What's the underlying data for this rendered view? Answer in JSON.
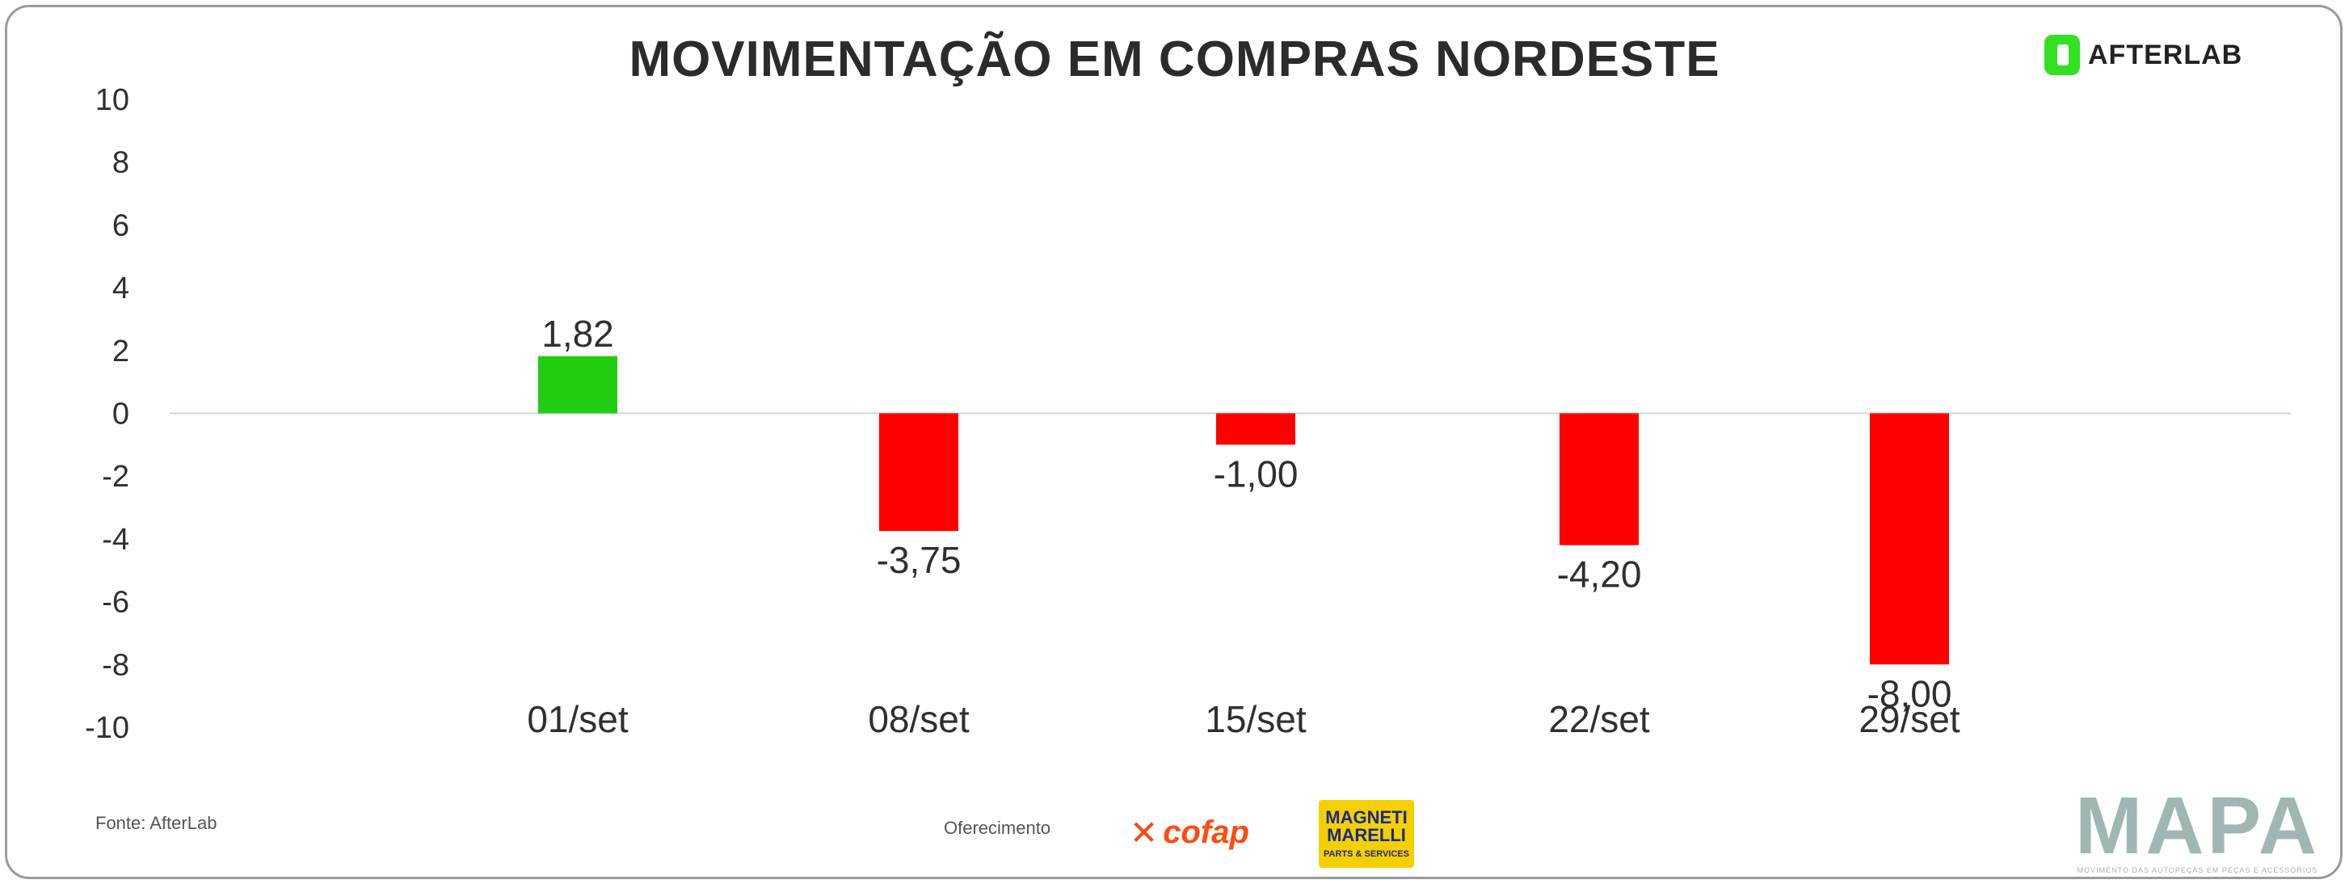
{
  "title": "MOVIMENTAÇÃO EM COMPRAS NORDESTE",
  "brand_top": "AFTERLAB",
  "source": "Fonte: AfterLab",
  "sponsor_label": "Oferecimento",
  "sponsors": [
    "cofap",
    "MAGNETI MARELLI",
    "PARTS & SERVICES"
  ],
  "footer_brand": "MAPA",
  "footer_tagline": "MOVIMENTO DAS AUTOPEÇAS EM PEÇAS E ACESSÓRIOS",
  "colors": {
    "positive": "#22cc11",
    "negative": "#ff0000",
    "zero_line": "#c8d8d8",
    "brand_green": "#33e022"
  },
  "chart_data": {
    "type": "bar",
    "title": "MOVIMENTAÇÃO EM COMPRAS NORDESTE",
    "categories": [
      "01/set",
      "08/set",
      "15/set",
      "22/set",
      "29/set"
    ],
    "values": [
      1.82,
      -3.75,
      -1.0,
      -4.2,
      -8.0
    ],
    "value_labels": [
      "1,82",
      "-3,75",
      "-1,00",
      "-4,20",
      "-8,00"
    ],
    "xlabel": "",
    "ylabel": "",
    "ylim": [
      -10,
      10
    ],
    "yticks": [
      10,
      8,
      6,
      4,
      2,
      0,
      -2,
      -4,
      -6,
      -8,
      -10
    ],
    "grid": false,
    "legend": "none"
  }
}
